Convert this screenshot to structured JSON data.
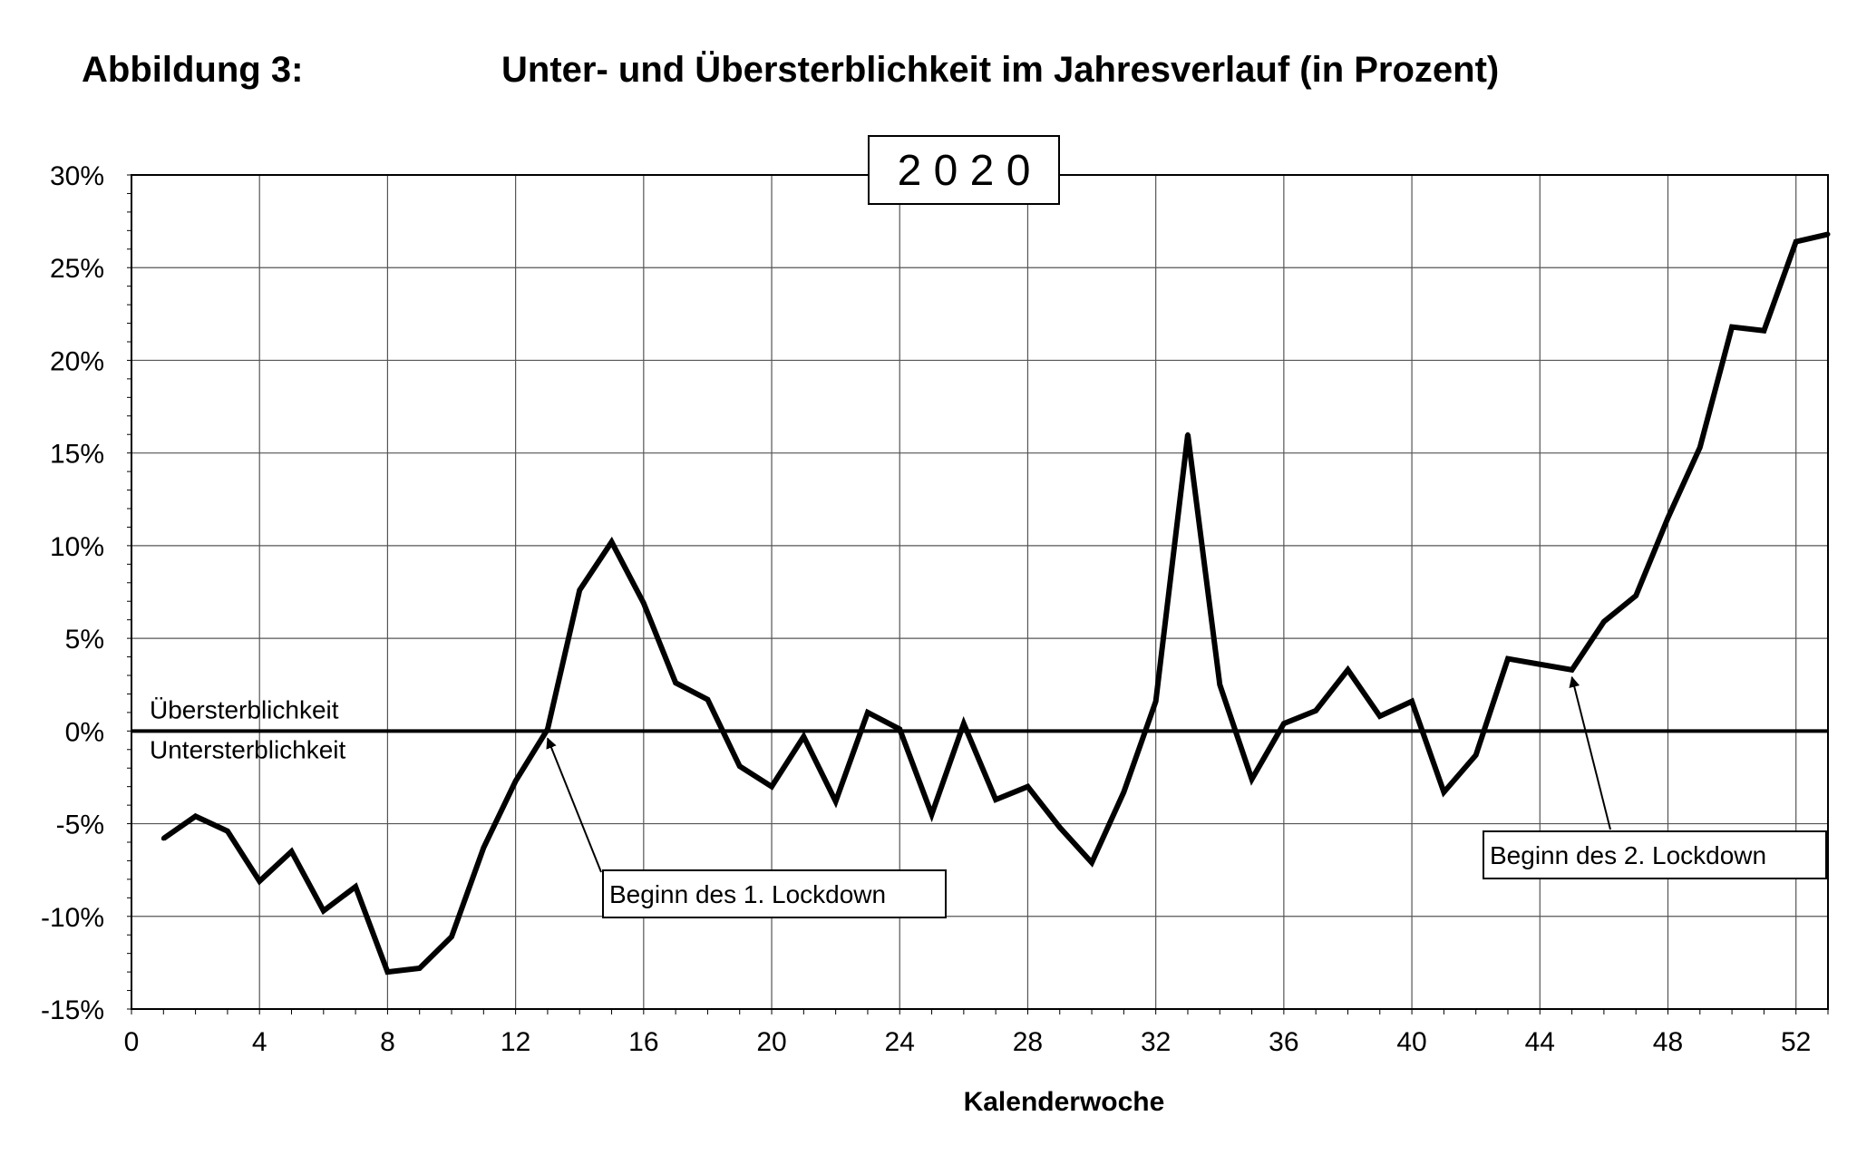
{
  "figure": {
    "label": "Abbildung 3:",
    "title": "Unter- und Übersterblichkeit im Jahresverlauf (in Prozent)"
  },
  "chart_data": {
    "type": "line",
    "title": "2020",
    "xlabel": "Kalenderwoche",
    "ylabel": "",
    "xlim": [
      0,
      53
    ],
    "ylim": [
      -15,
      30
    ],
    "x_ticks": [
      0,
      4,
      8,
      12,
      16,
      20,
      24,
      28,
      32,
      36,
      40,
      44,
      48,
      52
    ],
    "y_ticks": [
      -15,
      -10,
      -5,
      0,
      5,
      10,
      15,
      20,
      25,
      30
    ],
    "y_tick_labels": [
      "-15%",
      "-10%",
      "-5%",
      "0%",
      "5%",
      "10%",
      "15%",
      "20%",
      "25%",
      "30%"
    ],
    "grid": true,
    "zero_line": {
      "label_above": "Übersterblichkeit",
      "label_below": "Untersterblichkeit"
    },
    "series": [
      {
        "x": [
          1,
          2,
          3,
          4,
          5,
          6,
          7,
          8,
          9,
          10,
          11,
          12,
          13,
          14,
          15,
          16,
          17,
          18,
          19,
          20,
          21,
          22,
          23,
          24,
          25,
          26,
          27,
          28,
          29,
          30,
          31,
          32,
          33,
          34,
          35,
          36,
          37,
          38,
          39,
          40,
          41,
          42,
          43,
          44,
          45,
          46,
          47,
          48,
          49,
          50,
          51,
          52,
          53
        ],
        "y": [
          -5.8,
          -4.6,
          -5.4,
          -8.1,
          -6.5,
          -9.7,
          -8.4,
          -13.0,
          -12.8,
          -11.1,
          -6.3,
          -2.7,
          0.1,
          7.6,
          10.2,
          6.9,
          2.6,
          1.7,
          -1.9,
          -3.0,
          -0.3,
          -3.8,
          1.0,
          0.1,
          -4.5,
          0.4,
          -3.7,
          -3.0,
          -5.2,
          -7.1,
          -3.3,
          1.6,
          16.0,
          2.5,
          -2.6,
          0.4,
          1.1,
          3.3,
          0.8,
          1.6,
          -3.3,
          -1.3,
          3.9,
          3.6,
          3.3,
          5.9,
          7.3,
          11.5,
          15.3,
          21.8,
          21.6,
          26.4,
          26.8
        ]
      }
    ],
    "annotations": [
      {
        "text": "Beginn des 1. Lockdown",
        "x": 13,
        "y": 0
      },
      {
        "text": "Beginn des 2. Lockdown",
        "x": 45,
        "y": 3.3
      }
    ]
  }
}
